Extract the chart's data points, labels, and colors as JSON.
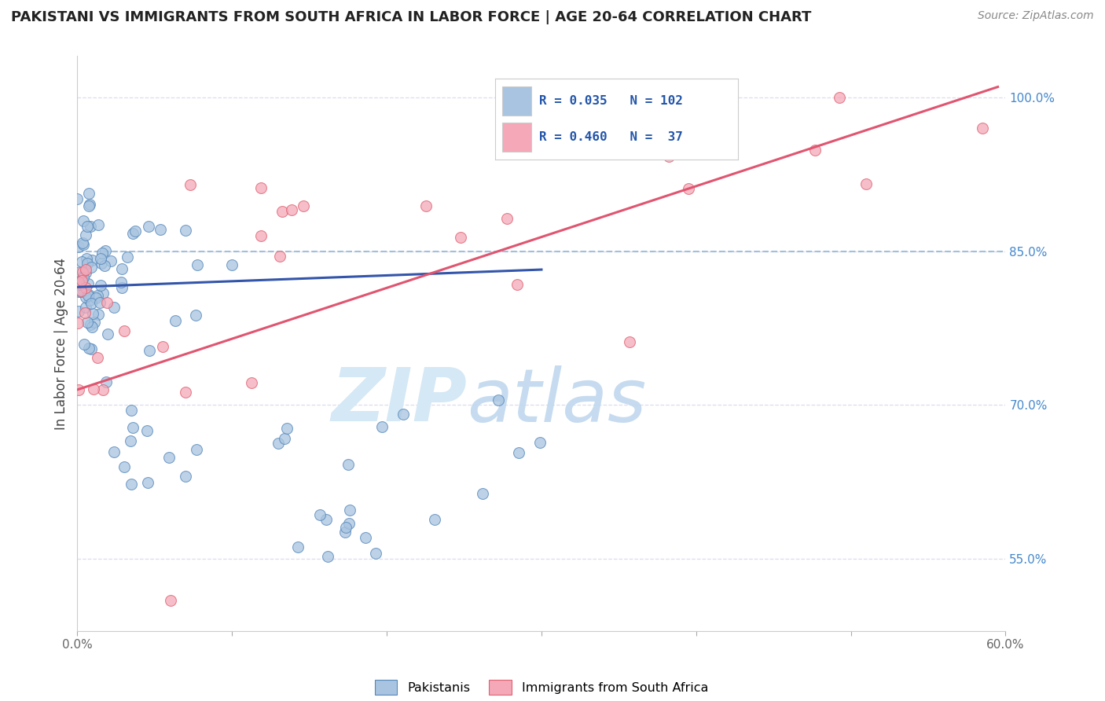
{
  "title": "PAKISTANI VS IMMIGRANTS FROM SOUTH AFRICA IN LABOR FORCE | AGE 20-64 CORRELATION CHART",
  "source": "Source: ZipAtlas.com",
  "ylabel": "In Labor Force | Age 20-64",
  "xlim": [
    0.0,
    0.6
  ],
  "ylim": [
    0.48,
    1.04
  ],
  "blue_color": "#A8C4E0",
  "pink_color": "#F4A8B8",
  "blue_edge_color": "#5588BB",
  "pink_edge_color": "#E06070",
  "blue_line_color": "#3355AA",
  "pink_line_color": "#E05570",
  "dashed_line_color": "#99BBDD",
  "legend_R_blue": "0.035",
  "legend_N_blue": "102",
  "legend_R_pink": "0.460",
  "legend_N_pink": "37",
  "background_color": "#FFFFFF",
  "grid_color": "#DDDDEE",
  "watermark_color": "#D5E8F5",
  "ytick_color": "#4488CC",
  "xtick_color": "#666666",
  "title_color": "#222222",
  "source_color": "#888888",
  "ylabel_color": "#444444"
}
